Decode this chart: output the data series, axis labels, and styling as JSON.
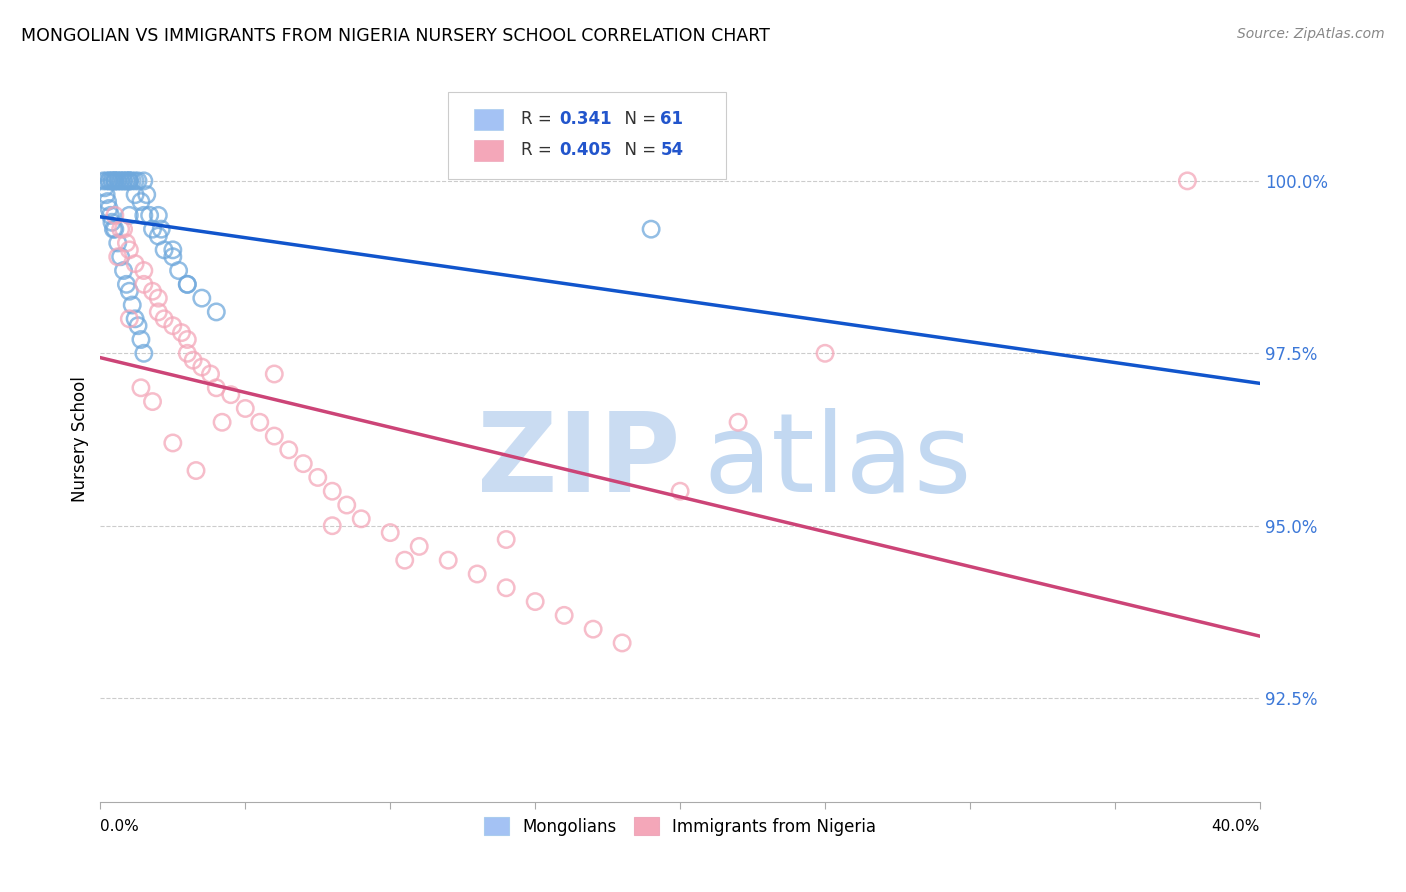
{
  "title": "MONGOLIAN VS IMMIGRANTS FROM NIGERIA NURSERY SCHOOL CORRELATION CHART",
  "source": "Source: ZipAtlas.com",
  "ylabel": "Nursery School",
  "ytick_values": [
    92.5,
    95.0,
    97.5,
    100.0
  ],
  "xlim": [
    0.0,
    40.0
  ],
  "ylim": [
    91.0,
    101.5
  ],
  "legend1_color": "#a4c2f4",
  "legend2_color": "#f4a7b9",
  "mongolian_color": "#6fa8dc",
  "nigeria_color": "#f4a7b9",
  "trendline_mongolian_color": "#1155cc",
  "trendline_nigeria_color": "#cc4477",
  "watermark_zip_color": "#c5d9f1",
  "watermark_atlas_color": "#bcd4f0",
  "background_color": "#ffffff",
  "mongolian_x": [
    0.1,
    0.2,
    0.3,
    0.3,
    0.4,
    0.4,
    0.5,
    0.5,
    0.5,
    0.6,
    0.6,
    0.7,
    0.7,
    0.8,
    0.8,
    0.9,
    0.9,
    1.0,
    1.0,
    1.0,
    1.0,
    1.1,
    1.2,
    1.2,
    1.3,
    1.4,
    1.5,
    1.5,
    1.6,
    1.7,
    1.8,
    2.0,
    2.1,
    2.2,
    2.5,
    2.7,
    3.0,
    3.5,
    4.0,
    0.2,
    0.3,
    0.4,
    0.5,
    0.6,
    0.7,
    0.8,
    0.9,
    1.0,
    1.1,
    1.2,
    1.3,
    1.4,
    1.5,
    2.0,
    2.5,
    3.0,
    0.15,
    0.25,
    0.35,
    0.45,
    19.0
  ],
  "mongolian_y": [
    100.0,
    100.0,
    100.0,
    100.0,
    100.0,
    100.0,
    100.0,
    100.0,
    100.0,
    100.0,
    100.0,
    100.0,
    100.0,
    100.0,
    100.0,
    100.0,
    100.0,
    100.0,
    100.0,
    100.0,
    99.5,
    100.0,
    100.0,
    99.8,
    100.0,
    99.7,
    100.0,
    99.5,
    99.8,
    99.5,
    99.3,
    99.2,
    99.3,
    99.0,
    98.9,
    98.7,
    98.5,
    98.3,
    98.1,
    99.8,
    99.6,
    99.4,
    99.3,
    99.1,
    98.9,
    98.7,
    98.5,
    98.4,
    98.2,
    98.0,
    97.9,
    97.7,
    97.5,
    99.5,
    99.0,
    98.5,
    99.9,
    99.7,
    99.5,
    99.3,
    99.3
  ],
  "nigeria_x": [
    0.5,
    0.8,
    0.9,
    1.0,
    1.2,
    1.5,
    1.5,
    1.8,
    2.0,
    2.0,
    2.2,
    2.5,
    2.8,
    3.0,
    3.0,
    3.2,
    3.5,
    3.8,
    4.0,
    4.5,
    5.0,
    5.5,
    6.0,
    6.5,
    7.0,
    7.5,
    8.0,
    8.5,
    9.0,
    10.0,
    11.0,
    12.0,
    13.0,
    14.0,
    15.0,
    16.0,
    17.0,
    18.0,
    20.0,
    22.0,
    25.0,
    0.6,
    1.0,
    1.4,
    1.8,
    2.5,
    3.3,
    4.2,
    6.0,
    8.0,
    10.5,
    14.0,
    37.5,
    0.7
  ],
  "nigeria_y": [
    99.5,
    99.3,
    99.1,
    99.0,
    98.8,
    98.7,
    98.5,
    98.4,
    98.3,
    98.1,
    98.0,
    97.9,
    97.8,
    97.7,
    97.5,
    97.4,
    97.3,
    97.2,
    97.0,
    96.9,
    96.7,
    96.5,
    96.3,
    96.1,
    95.9,
    95.7,
    95.5,
    95.3,
    95.1,
    94.9,
    94.7,
    94.5,
    94.3,
    94.1,
    93.9,
    93.7,
    93.5,
    93.3,
    95.5,
    96.5,
    97.5,
    98.9,
    98.0,
    97.0,
    96.8,
    96.2,
    95.8,
    96.5,
    97.2,
    95.0,
    94.5,
    94.8,
    100.0,
    99.3
  ]
}
